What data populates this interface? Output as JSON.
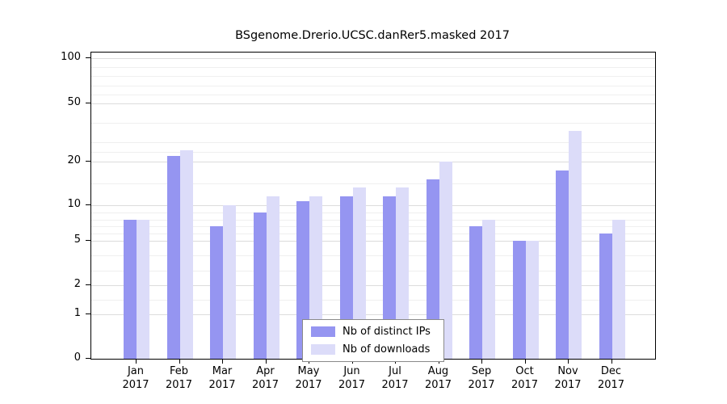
{
  "title": "BSgenome.Drerio.UCSC.danRer5.masked 2017",
  "chart_data": {
    "type": "bar",
    "title": "BSgenome.Drerio.UCSC.danRer5.masked 2017",
    "months": [
      "Jan",
      "Feb",
      "Mar",
      "Apr",
      "May",
      "Jun",
      "Jul",
      "Aug",
      "Sep",
      "Oct",
      "Nov",
      "Dec"
    ],
    "year": "2017",
    "series": [
      {
        "name": "Nb of distinct IPs",
        "color": "#9595f1",
        "values": [
          8,
          23,
          7,
          9,
          11,
          12,
          12,
          16,
          7,
          5,
          18,
          6
        ]
      },
      {
        "name": "Nb of downloads",
        "color": "#dcdcf9",
        "values": [
          8,
          26,
          10,
          12,
          12,
          14,
          14,
          20,
          8,
          5,
          36,
          8
        ]
      }
    ],
    "yticks": [
      0,
      1,
      2,
      5,
      10,
      20,
      50,
      100
    ],
    "minor_gridlines": [
      1.5,
      3,
      4,
      6,
      7,
      8,
      9,
      15,
      25,
      30,
      40,
      60,
      70,
      80,
      90
    ],
    "ylim": [
      0,
      100
    ],
    "yscale": "log-like",
    "xlabel": "",
    "ylabel": "",
    "grid": true,
    "legend_position": "bottom-center"
  }
}
